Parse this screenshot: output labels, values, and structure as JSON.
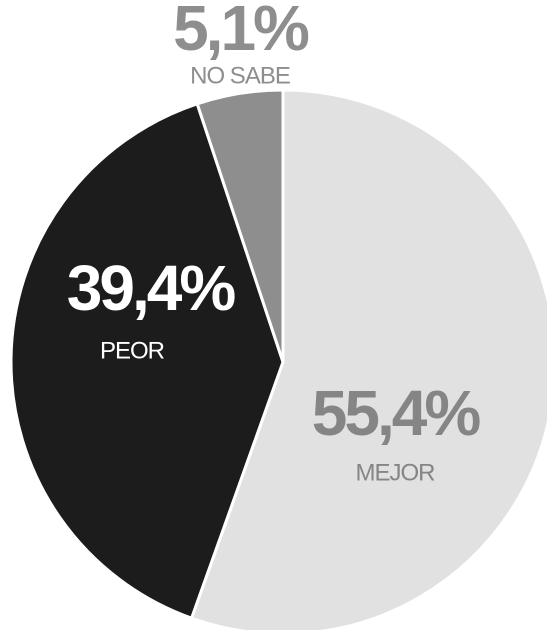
{
  "chart_data": {
    "type": "pie",
    "categories": [
      "MEJOR",
      "PEOR",
      "NO SABE"
    ],
    "values": [
      55.4,
      39.4,
      5.1
    ],
    "value_labels": [
      "55,4%",
      "39,4%",
      "5,1%"
    ],
    "colors": [
      "#e1e1e1",
      "#1c1c1c",
      "#8e8e8e"
    ]
  }
}
